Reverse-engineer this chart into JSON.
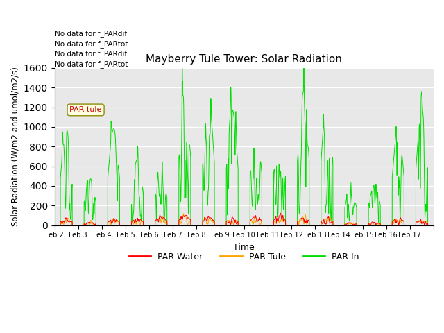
{
  "title": "Mayberry Tule Tower: Solar Radiation",
  "ylabel": "Solar Radiation (W/m2 and umol/m2/s)",
  "xlabel": "Time",
  "ylim": [
    0,
    1600
  ],
  "yticks": [
    0,
    200,
    400,
    600,
    800,
    1000,
    1200,
    1400,
    1600
  ],
  "bg_color": "#e8e8e8",
  "no_data_texts": [
    "No data for f_PARdif",
    "No data for f_PARtot",
    "No data for f_PARdif",
    "No data for f_PARtot"
  ],
  "legend_labels": [
    "PAR Water",
    "PAR Tule",
    "PAR In"
  ],
  "legend_colors": [
    "#ff0000",
    "#ffa500",
    "#00dd00"
  ],
  "x_tick_labels": [
    "Feb 2",
    "Feb 3",
    "Feb 4",
    "Feb 5",
    "Feb 6",
    "Feb 7",
    "Feb 8",
    "Feb 9",
    "Feb 10",
    "Feb 11",
    "Feb 12",
    "Feb 13",
    "Feb 14",
    "Feb 15",
    "Feb 16",
    "Feb 17"
  ],
  "num_days": 16,
  "tooltip_text": "PAR tule",
  "tooltip_color": "#cc0000"
}
